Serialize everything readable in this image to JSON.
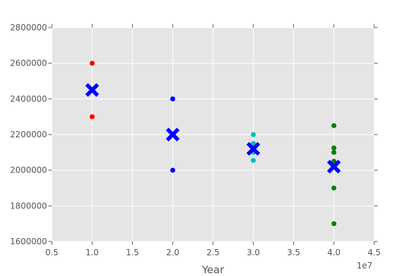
{
  "chart_data": {
    "type": "scatter",
    "title": "",
    "xlabel": "Year",
    "ylabel": "",
    "x_offset_label": "1e7",
    "xlim": [
      5000000,
      45000000
    ],
    "ylim": [
      1600000,
      2800000
    ],
    "x_ticks": [
      5000000,
      10000000,
      15000000,
      20000000,
      25000000,
      30000000,
      35000000,
      40000000,
      45000000
    ],
    "x_tick_labels": [
      "0.5",
      "1.0",
      "1.5",
      "2.0",
      "2.5",
      "3.0",
      "3.5",
      "4.0",
      "4.5"
    ],
    "y_ticks": [
      1600000,
      1800000,
      2000000,
      2200000,
      2400000,
      2600000,
      2800000
    ],
    "y_tick_labels": [
      "1600000",
      "1800000",
      "2000000",
      "2200000",
      "2400000",
      "2600000",
      "2800000"
    ],
    "grid": true,
    "background_color": "#e5e5e5",
    "grid_color": "#ffffff",
    "series": [
      {
        "color": "#ff0000",
        "marker": "circle",
        "points": [
          [
            10000000,
            2600000
          ],
          [
            10000000,
            2300000
          ]
        ]
      },
      {
        "color": "#0000ff",
        "marker": "circle",
        "points": [
          [
            20000000,
            2400000
          ],
          [
            20000000,
            2000000
          ]
        ]
      },
      {
        "color": "#00bfbf",
        "marker": "circle",
        "points": [
          [
            30000000,
            2200000
          ],
          [
            30000000,
            2150000
          ],
          [
            30000000,
            2100000
          ],
          [
            30000000,
            2055000
          ]
        ]
      },
      {
        "color": "#008000",
        "marker": "circle",
        "points": [
          [
            40000000,
            2250000
          ],
          [
            40000000,
            2125000
          ],
          [
            40000000,
            2100000
          ],
          [
            40000000,
            2050000
          ],
          [
            40000000,
            1900000
          ],
          [
            40000000,
            1700000
          ]
        ]
      },
      {
        "color": "#0000ff",
        "marker": "x",
        "points": [
          [
            10000000,
            2450000
          ],
          [
            20000000,
            2200000
          ],
          [
            30000000,
            2120000
          ],
          [
            40000000,
            2020000
          ]
        ]
      }
    ]
  }
}
